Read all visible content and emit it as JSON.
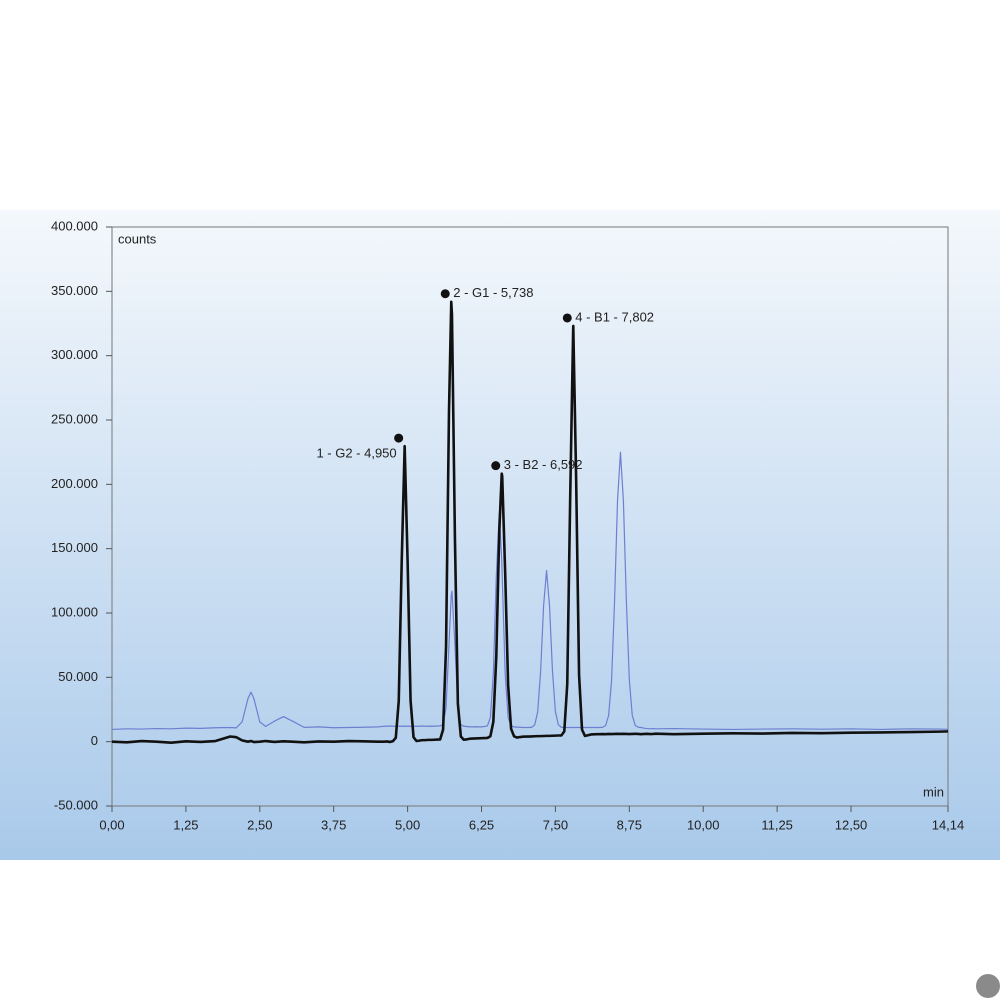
{
  "chart_data": {
    "type": "line",
    "y_label": "counts",
    "x_label": "min",
    "xlim": [
      0,
      14.14
    ],
    "ylim": [
      -50000,
      400000
    ],
    "xticks": [
      {
        "value": 0,
        "label": "0,00"
      },
      {
        "value": 1.25,
        "label": "1,25"
      },
      {
        "value": 2.5,
        "label": "2,50"
      },
      {
        "value": 3.75,
        "label": "3,75"
      },
      {
        "value": 5,
        "label": "5,00"
      },
      {
        "value": 6.25,
        "label": "6,25"
      },
      {
        "value": 7.5,
        "label": "7,50"
      },
      {
        "value": 8.75,
        "label": "8,75"
      },
      {
        "value": 10,
        "label": "10,00"
      },
      {
        "value": 11.25,
        "label": "11,25"
      },
      {
        "value": 12.5,
        "label": "12,50"
      },
      {
        "value": 14.14,
        "label": "14,14"
      }
    ],
    "yticks": [
      {
        "value": -50000,
        "label": "-50.000"
      },
      0,
      {
        "value": 50000,
        "label": "50.000"
      },
      {
        "value": 100000,
        "label": "100.000"
      },
      {
        "value": 150000,
        "label": "150.000"
      },
      {
        "value": 200000,
        "label": "200.000"
      },
      {
        "value": 250000,
        "label": "250.000"
      },
      {
        "value": 300000,
        "label": "300.000"
      },
      {
        "value": 350000,
        "label": "350.000"
      },
      {
        "value": 400000,
        "label": "400.000"
      }
    ],
    "x": [
      0,
      0.25,
      0.5,
      0.75,
      1,
      1.25,
      1.5,
      1.75,
      2,
      2.1,
      2.2,
      2.3,
      2.35,
      2.4,
      2.5,
      2.6,
      2.75,
      2.9,
      3.05,
      3.25,
      3.5,
      3.75,
      4,
      4.25,
      4.5,
      4.6,
      4.65,
      4.7,
      4.75,
      4.8,
      4.85,
      4.9,
      4.95,
      5.0,
      5.05,
      5.1,
      5.15,
      5.2,
      5.25,
      5.3,
      5.35,
      5.4,
      5.45,
      5.5,
      5.55,
      5.6,
      5.65,
      5.7,
      5.738,
      5.75,
      5.8,
      5.85,
      5.9,
      5.95,
      6.0,
      6.05,
      6.1,
      6.15,
      6.2,
      6.25,
      6.3,
      6.35,
      6.4,
      6.45,
      6.5,
      6.55,
      6.592,
      6.6,
      6.65,
      6.7,
      6.75,
      6.8,
      6.85,
      6.9,
      6.95,
      7.0,
      7.05,
      7.1,
      7.15,
      7.2,
      7.25,
      7.3,
      7.35,
      7.4,
      7.45,
      7.5,
      7.55,
      7.6,
      7.65,
      7.7,
      7.75,
      7.8,
      7.802,
      7.85,
      7.9,
      7.95,
      8.0,
      8.05,
      8.1,
      8.15,
      8.2,
      8.25,
      8.3,
      8.35,
      8.4,
      8.45,
      8.5,
      8.55,
      8.6,
      8.65,
      8.7,
      8.75,
      8.8,
      8.85,
      8.9,
      8.95,
      9.0,
      9.05,
      9.1,
      9.15,
      9.2,
      9.5,
      10,
      10.5,
      11,
      11.5,
      12,
      12.5,
      13,
      13.5,
      14,
      14.14
    ],
    "series": [
      {
        "color": "#6d7fd0",
        "values": [
          9500,
          10000,
          9800,
          10200,
          10000,
          10500,
          10300,
          10800,
          11000,
          10700,
          15300,
          33500,
          38500,
          33500,
          15300,
          11900,
          16000,
          19500,
          16000,
          11100,
          11500,
          10800,
          11000,
          11200,
          11500,
          12000,
          12000,
          12200,
          12000,
          12000,
          12000,
          12000,
          12100,
          12000,
          12000,
          12000,
          12000,
          12000,
          12200,
          12000,
          12000,
          12100,
          12000,
          12200,
          12300,
          13200,
          26200,
          75700,
          114000,
          117000,
          75700,
          26200,
          13200,
          12000,
          11800,
          11500,
          11500,
          11600,
          11500,
          11500,
          11800,
          12200,
          18800,
          53000,
          128500,
          177500,
          141500,
          128500,
          53000,
          18800,
          12200,
          11500,
          11300,
          11200,
          11000,
          11000,
          11000,
          11200,
          13100,
          23200,
          54900,
          105600,
          133000,
          105600,
          54900,
          23200,
          13100,
          11200,
          11000,
          11000,
          11000,
          11000,
          11000,
          11000,
          11000,
          11000,
          11000,
          11000,
          11000,
          11000,
          11000,
          11000,
          11200,
          12600,
          20400,
          47800,
          109000,
          187000,
          225000,
          187000,
          109000,
          47800,
          20400,
          12600,
          11200,
          11000,
          10500,
          10200,
          10000,
          10200,
          10000,
          10200,
          9800,
          9500,
          9800,
          10000,
          9700,
          10000,
          9500,
          10000,
          9800,
          9600
        ]
      },
      {
        "color": "#111111",
        "values": [
          0,
          -500,
          500,
          0,
          -800,
          300,
          -200,
          500,
          4000,
          3500,
          1000,
          0,
          500,
          -300,
          0,
          500,
          -200,
          300,
          0,
          -500,
          200,
          0,
          500,
          300,
          0,
          0,
          200,
          -200,
          300,
          3000,
          31600,
          139700,
          229700,
          139800,
          31900,
          3500,
          500,
          800,
          1200,
          1200,
          1400,
          1400,
          1500,
          1600,
          1700,
          9400,
          73800,
          256900,
          341900,
          332000,
          159000,
          29700,
          4000,
          1500,
          1800,
          2300,
          2400,
          2500,
          2600,
          2700,
          2800,
          2900,
          4200,
          15500,
          66100,
          163200,
          208300,
          206300,
          131400,
          44100,
          10000,
          4200,
          3200,
          3600,
          3900,
          4000,
          4000,
          4100,
          4200,
          4300,
          4300,
          4400,
          4500,
          4500,
          4600,
          4700,
          4800,
          4800,
          8000,
          44700,
          190000,
          320100,
          323100,
          205200,
          51800,
          9300,
          4500,
          5000,
          5600,
          5700,
          5800,
          5800,
          5900,
          5800,
          6000,
          5900,
          6000,
          6100,
          6000,
          6100,
          6000,
          5900,
          6000,
          6100,
          6000,
          5800,
          6000,
          6100,
          5900,
          6000,
          6200,
          5800,
          6200,
          6500,
          6300,
          6800,
          6600,
          7000,
          7200,
          7500,
          7800,
          8000
        ]
      }
    ],
    "annotations": [
      {
        "text": "1 - G2 - 4,950",
        "x": 4.95,
        "y": 229700
      },
      {
        "text": "2 - G1 - 5,738",
        "x": 5.738,
        "y": 341900
      },
      {
        "text": "3 - B2 - 6,592",
        "x": 6.592,
        "y": 208300
      },
      {
        "text": "4 - B1 - 7,802",
        "x": 7.802,
        "y": 323100
      }
    ]
  }
}
